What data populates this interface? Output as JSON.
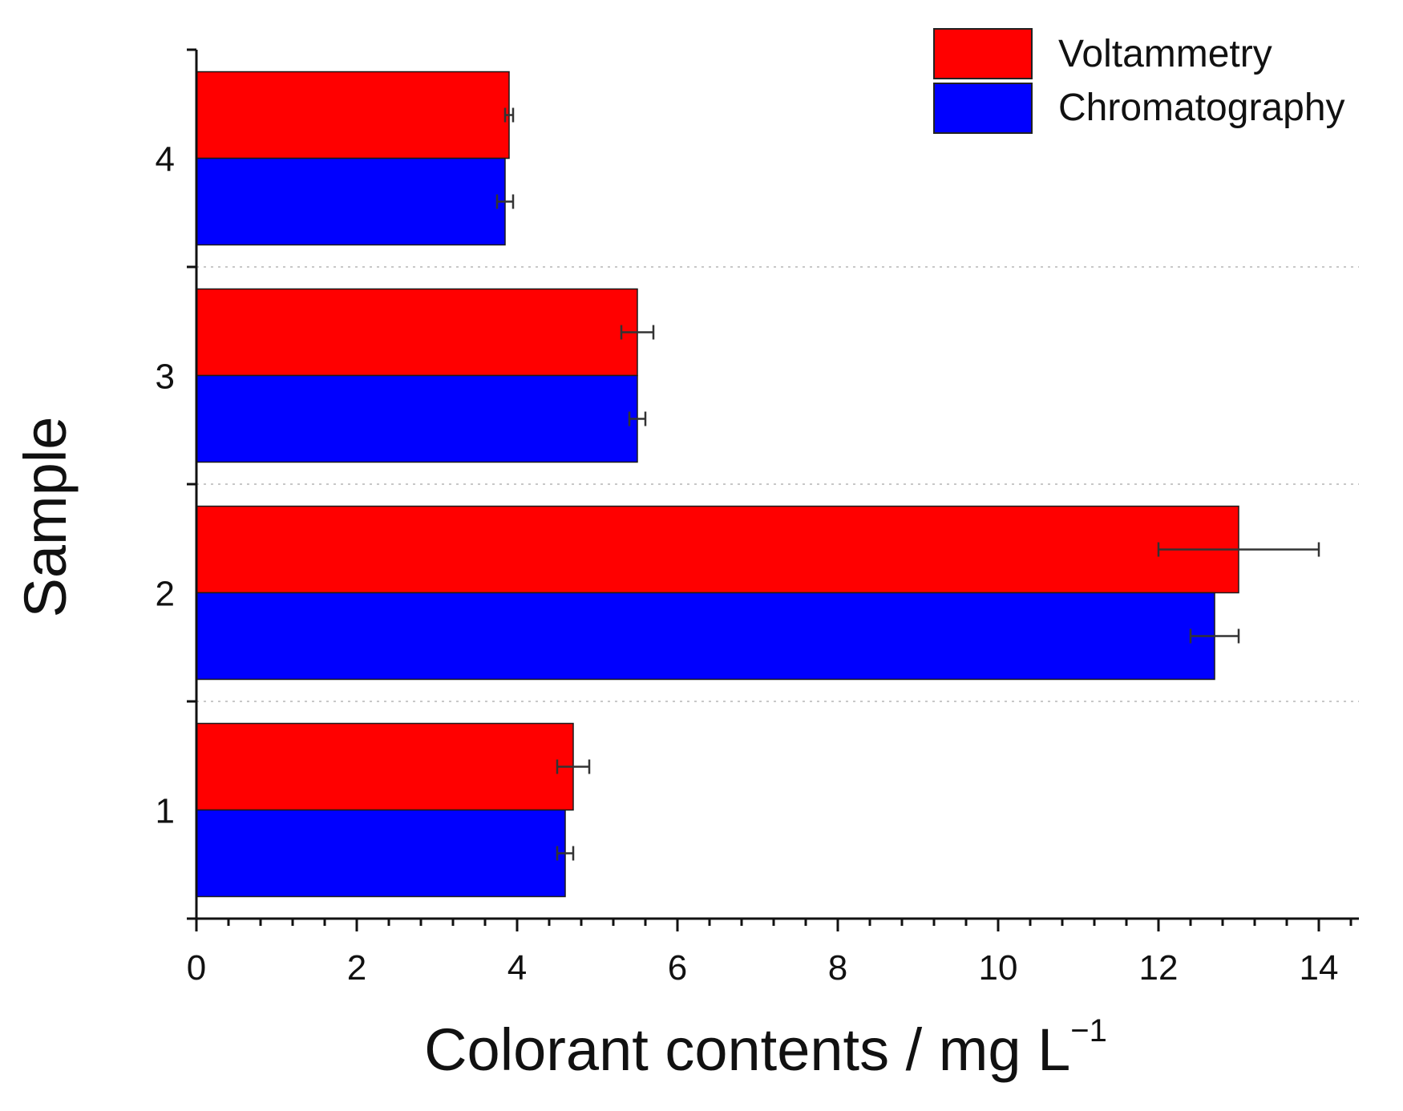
{
  "chart_data": {
    "type": "bar",
    "orientation": "horizontal",
    "categories": [
      "1",
      "2",
      "3",
      "4"
    ],
    "series": [
      {
        "name": "Voltammetry",
        "color": "#ff0000",
        "values": [
          4.7,
          13.0,
          5.5,
          3.9
        ],
        "errors": [
          0.2,
          1.0,
          0.2,
          0.05
        ]
      },
      {
        "name": "Chromatography",
        "color": "#0000ff",
        "values": [
          4.6,
          12.7,
          5.5,
          3.85
        ],
        "errors": [
          0.1,
          0.3,
          0.1,
          0.1
        ]
      }
    ],
    "xlabel": "Colorant contents / mg L",
    "xlabel_sup": "−1",
    "ylabel": "Sample",
    "xlim": [
      0,
      14.5
    ],
    "xticks": [
      "0",
      "2",
      "4",
      "6",
      "8",
      "10",
      "12",
      "14"
    ],
    "legend_position": "top-right",
    "grid": "dotted separators between samples"
  }
}
